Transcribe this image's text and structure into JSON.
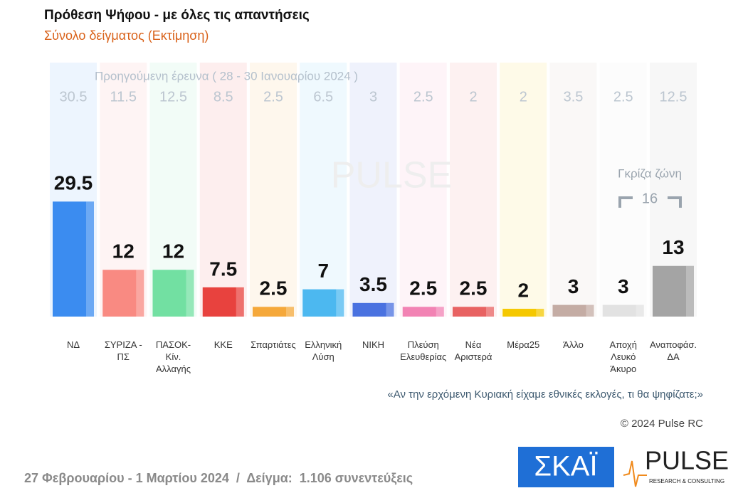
{
  "chart_data": {
    "type": "bar",
    "title": "Πρόθεση Ψήφου - με όλες τις απαντήσεις",
    "subtitle": "Σύνολο δείγματος   (Εκτίμηση)",
    "previous_label": "Προηγούμενη έρευνα ( 28 - 30 Ιανουαρίου 2024 )",
    "categories": [
      "ΝΔ",
      "ΣΥΡΙΖΑ - ΠΣ",
      "ΠΑΣΟΚ-Κίν. Αλλαγής",
      "ΚΚΕ",
      "Σπαρτιάτες",
      "Ελληνική Λύση",
      "ΝΙΚΗ",
      "Πλεύση Ελευθερίας",
      "Νέα Αριστερά",
      "Μέρα25",
      "Άλλο",
      "Αποχή Λευκό Άκυρο",
      "Αναποφάσ. ΔΑ"
    ],
    "values": [
      29.5,
      12,
      12,
      7.5,
      2.5,
      7,
      3.5,
      2.5,
      2.5,
      2,
      3,
      3,
      13
    ],
    "previous_values": [
      30.5,
      11.5,
      12.5,
      8.5,
      2.5,
      6.5,
      3,
      2.5,
      2,
      2,
      3.5,
      2.5,
      12.5
    ],
    "colors": [
      "#3b8cf0",
      "#f98a82",
      "#72e0a2",
      "#e8423e",
      "#f5a83a",
      "#4cb8f0",
      "#4a72e0",
      "#f283b4",
      "#e86262",
      "#f5c800",
      "#c4aca4",
      "#e2e2e2",
      "#a4a4a4"
    ],
    "gray_zone": {
      "label": "Γκρίζα ζώνη",
      "value": 16
    },
    "question": "«Αν την ερχόμενη Κυριακή είχαμε εθνικές εκλογές, τι θα ψηφίζατε;»",
    "copyright": "© 2024 Pulse RC",
    "footer": "27 Φεβρουαρίου - 1 Μαρτίου 2024  /  Δείγμα:  1.106 συνεντεύξεις",
    "logos": {
      "channel": "ΣΚΑΪ",
      "pollster": "PULSE",
      "pollster_sub": "RESEARCH & CONSULTING"
    }
  }
}
